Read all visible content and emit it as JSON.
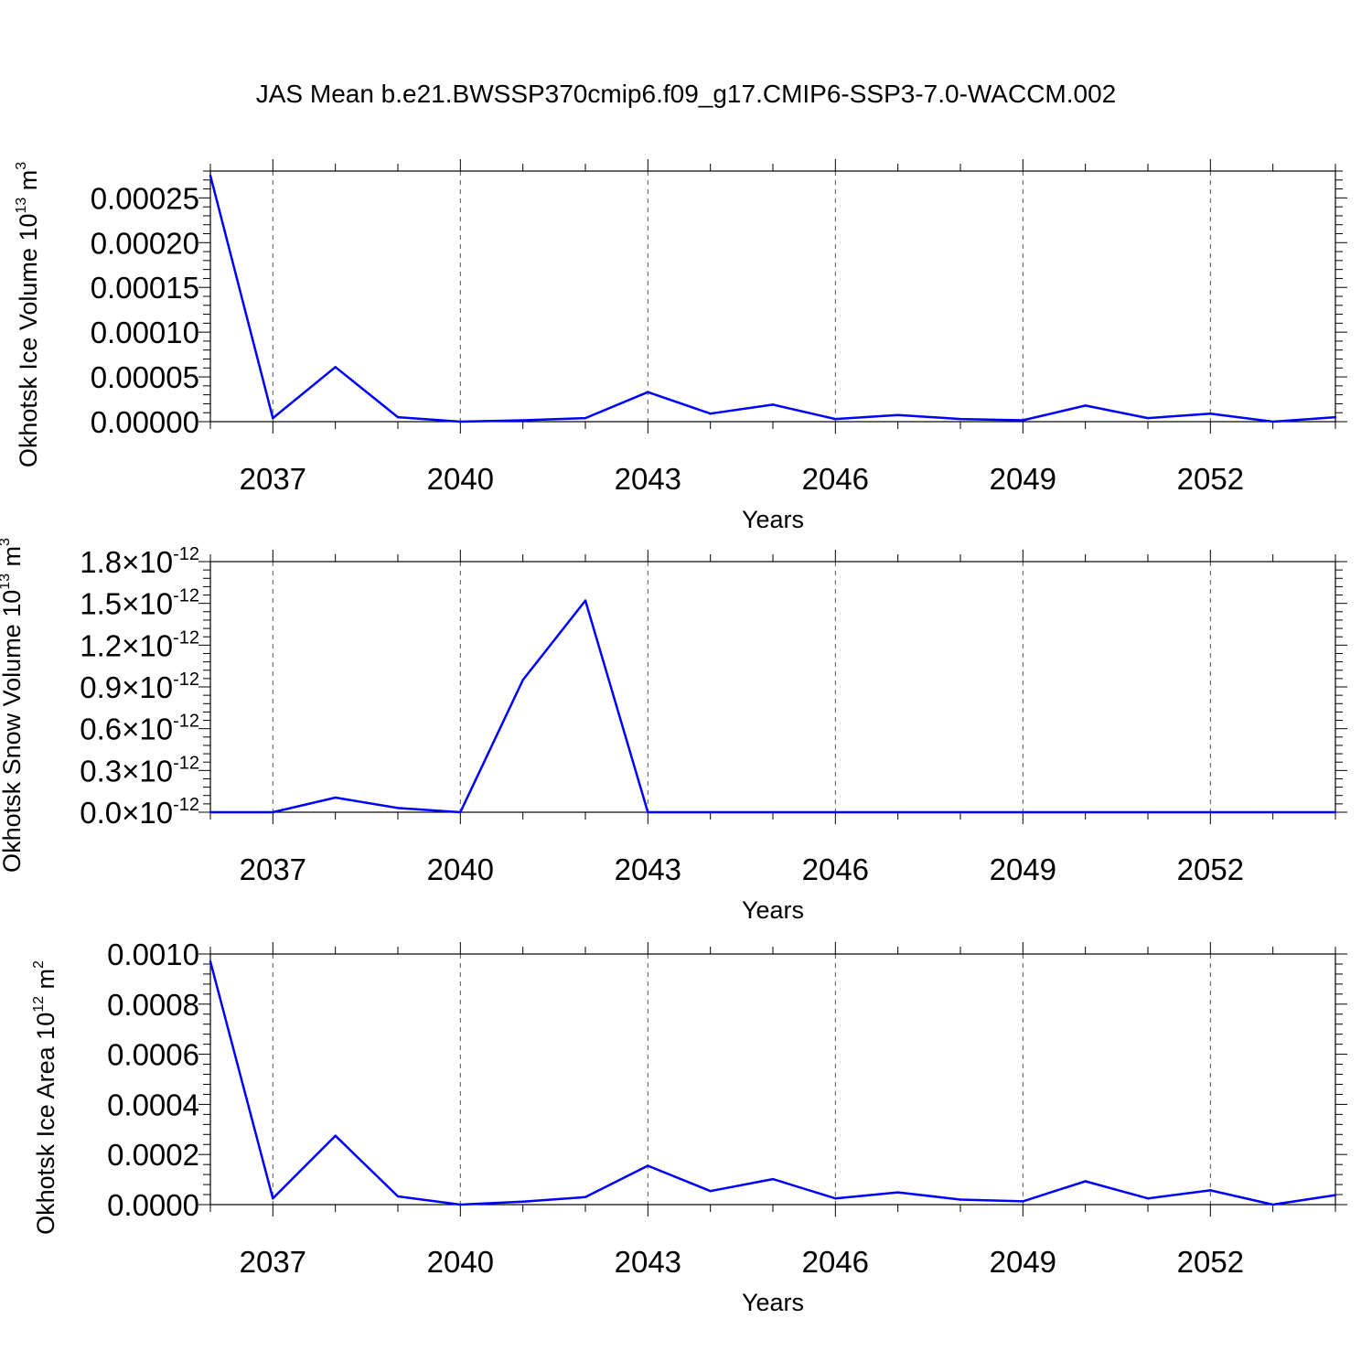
{
  "figure_title": "JAS Mean b.e21.BWSSP370cmip6.f09_g17.CMIP6-SSP3-7.0-WACCM.002",
  "colors": {
    "line": "#0000ff",
    "axis": "#000000",
    "grid": "#555555"
  },
  "chart_data": [
    {
      "type": "line",
      "title": "",
      "xlabel": "Years",
      "ylabel": {
        "text": "Okhotsk Ice Volume 10",
        "exp": "13",
        "unit": " m",
        "unit_exp": "3"
      },
      "xlim": [
        2036,
        2054
      ],
      "xticks": [
        2037,
        2040,
        2043,
        2046,
        2049,
        2052
      ],
      "ylim": [
        0,
        0.00028
      ],
      "yticks": [
        0,
        5e-05,
        0.0001,
        0.00015,
        0.0002,
        0.00025
      ],
      "ytick_labels": [
        {
          "base": "0.00000"
        },
        {
          "base": "0.00005"
        },
        {
          "base": "0.00010"
        },
        {
          "base": "0.00015"
        },
        {
          "base": "0.00020"
        },
        {
          "base": "0.00025"
        }
      ],
      "grid": "vertical dashed at major x ticks",
      "x": [
        2036,
        2037,
        2038,
        2039,
        2040,
        2041,
        2042,
        2043,
        2044,
        2045,
        2046,
        2047,
        2048,
        2049,
        2050,
        2051,
        2052,
        2053,
        2054
      ],
      "series": [
        {
          "values": [
            0.000275,
            4e-06,
            6.1e-05,
            5e-06,
            0.0,
            1.5e-06,
            4e-06,
            3.3e-05,
            9e-06,
            1.9e-05,
            3e-06,
            7.5e-06,
            3e-06,
            1.5e-06,
            1.8e-05,
            4e-06,
            9e-06,
            0.0,
            5e-06
          ]
        }
      ]
    },
    {
      "type": "line",
      "title": "",
      "xlabel": "Years",
      "ylabel": {
        "text": "Okhotsk Snow Volume 10",
        "exp": "13",
        "unit": " m",
        "unit_exp": "3"
      },
      "xlim": [
        2036,
        2054
      ],
      "xticks": [
        2037,
        2040,
        2043,
        2046,
        2049,
        2052
      ],
      "ylim": [
        0,
        1.8e-12
      ],
      "yticks": [
        0,
        3e-13,
        6e-13,
        9e-13,
        1.2e-12,
        1.5e-12,
        1.8e-12
      ],
      "ytick_labels": [
        {
          "base": "0.0×10",
          "exp": "-12"
        },
        {
          "base": "0.3×10",
          "exp": "-12"
        },
        {
          "base": "0.6×10",
          "exp": "-12"
        },
        {
          "base": "0.9×10",
          "exp": "-12"
        },
        {
          "base": "1.2×10",
          "exp": "-12"
        },
        {
          "base": "1.5×10",
          "exp": "-12"
        },
        {
          "base": "1.8×10",
          "exp": "-12"
        }
      ],
      "grid": "vertical dashed at major x ticks",
      "x": [
        2036,
        2037,
        2038,
        2039,
        2040,
        2041,
        2042,
        2043,
        2044,
        2045,
        2046,
        2047,
        2048,
        2049,
        2050,
        2051,
        2052,
        2053,
        2054
      ],
      "series": [
        {
          "values": [
            0,
            0,
            1.05e-13,
            3e-14,
            0,
            9.5e-13,
            1.52e-12,
            0,
            0,
            0,
            0,
            0,
            0,
            0,
            0,
            0,
            0,
            0,
            0
          ]
        }
      ]
    },
    {
      "type": "line",
      "title": "",
      "xlabel": "Years",
      "ylabel": {
        "text": "Okhotsk Ice Area 10",
        "exp": "12",
        "unit": " m",
        "unit_exp": "2"
      },
      "xlim": [
        2036,
        2054
      ],
      "xticks": [
        2037,
        2040,
        2043,
        2046,
        2049,
        2052
      ],
      "ylim": [
        0,
        0.001
      ],
      "yticks": [
        0,
        0.0002,
        0.0004,
        0.0006,
        0.0008,
        0.001
      ],
      "ytick_labels": [
        {
          "base": "0.0000"
        },
        {
          "base": "0.0002"
        },
        {
          "base": "0.0004"
        },
        {
          "base": "0.0006"
        },
        {
          "base": "0.0008"
        },
        {
          "base": "0.0010"
        }
      ],
      "grid": "vertical dashed at major x ticks",
      "x": [
        2036,
        2037,
        2038,
        2039,
        2040,
        2041,
        2042,
        2043,
        2044,
        2045,
        2046,
        2047,
        2048,
        2049,
        2050,
        2051,
        2052,
        2053,
        2054
      ],
      "series": [
        {
          "values": [
            0.00097,
            2.5e-05,
            0.000275,
            3.3e-05,
            0.0,
            1.2e-05,
            3e-05,
            0.000155,
            5.4e-05,
            0.000102,
            2.5e-05,
            4.9e-05,
            2e-05,
            1.3e-05,
            9.3e-05,
            2.5e-05,
            5.7e-05,
            0.0,
            3.8e-05
          ]
        }
      ]
    }
  ]
}
